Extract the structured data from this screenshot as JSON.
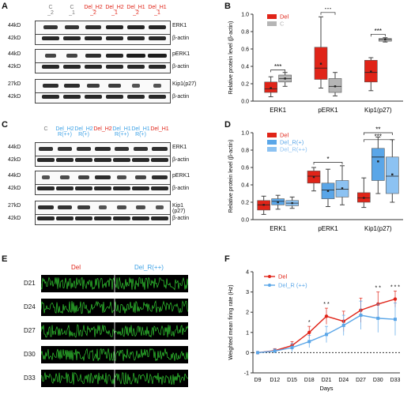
{
  "panels": {
    "A": {
      "letter": "A",
      "lanes": [
        {
          "t1": "C",
          "t2": "_2",
          "color": "gray"
        },
        {
          "t1": "C",
          "t2": "_1",
          "color": "gray"
        },
        {
          "t1": "Del_H2",
          "t2": "_2",
          "color": "red"
        },
        {
          "t1": "Del_H2",
          "t2": "_1",
          "color": "red"
        },
        {
          "t1": "Del_H1",
          "t2": "_2",
          "color": "red"
        },
        {
          "t1": "Del_H1",
          "t2": "_1",
          "color": "red"
        }
      ],
      "blots": [
        {
          "mw_top": "44kD",
          "mw_bottom": "42kD",
          "target": "ERK1",
          "ctrl": "β-actin"
        },
        {
          "mw_top": "44kD",
          "mw_bottom": "42kD",
          "target": "pERK1",
          "ctrl": "β-actin"
        },
        {
          "mw_top": "27kD",
          "mw_bottom": "42kD",
          "target": "Kip1(p27)",
          "ctrl": "β-actin"
        }
      ]
    },
    "C": {
      "letter": "C",
      "lanes": [
        {
          "t1": "C",
          "t2": "",
          "color": "gray"
        },
        {
          "t1": "Del_H2",
          "t2": "R(++)",
          "color": "blue"
        },
        {
          "t1": "Del_H2",
          "t2": "R(+)",
          "color": "blue"
        },
        {
          "t1": "Del_H2",
          "t2": "",
          "color": "red"
        },
        {
          "t1": "Del_H1",
          "t2": "R(++)",
          "color": "blue"
        },
        {
          "t1": "Del_H1",
          "t2": "R(+)",
          "color": "blue"
        },
        {
          "t1": "Del_H1",
          "t2": "",
          "color": "red"
        }
      ],
      "blots": [
        {
          "mw_top": "44kD",
          "mw_bottom": "42kD",
          "target": "ERK1",
          "ctrl": "β-actin"
        },
        {
          "mw_top": "44kD",
          "mw_bottom": "42kD",
          "target": "pERK1",
          "ctrl": "β-actin"
        },
        {
          "mw_top": "27kD",
          "mw_bottom": "42kD",
          "target": "Kip1\n(p27)",
          "ctrl": "β-actin"
        }
      ]
    },
    "E": {
      "letter": "E",
      "group_left": "Del",
      "group_right": "Del_R(++)",
      "rows": [
        "D21",
        "D24",
        "D27",
        "D30",
        "D33"
      ]
    },
    "B_letter": "B",
    "D_letter": "D",
    "F_letter": "F"
  },
  "chart_data": [
    {
      "panel": "B",
      "type": "box",
      "ylabel": "Relative protein level (β-actin)",
      "ylim": [
        0,
        1.0
      ],
      "yticks": [
        0.0,
        0.2,
        0.4,
        0.6,
        0.8,
        1.0
      ],
      "categories": [
        "ERK1",
        "pERK1",
        "Kip1(p27)"
      ],
      "legend": [
        {
          "name": "Del",
          "color": "#e02418"
        },
        {
          "name": "C",
          "color": "#b5b5b5"
        }
      ],
      "series": [
        {
          "name": "Del",
          "color": "#e02418",
          "boxes": [
            {
              "min": 0.05,
              "q1": 0.1,
              "median": 0.14,
              "q3": 0.22,
              "max": 0.28,
              "mean": 0.15
            },
            {
              "min": 0.15,
              "q1": 0.25,
              "median": 0.38,
              "q3": 0.62,
              "max": 0.97,
              "mean": 0.43
            },
            {
              "min": 0.12,
              "q1": 0.22,
              "median": 0.33,
              "q3": 0.47,
              "max": 0.5,
              "mean": 0.34
            }
          ]
        },
        {
          "name": "C",
          "color": "#b5b5b5",
          "boxes": [
            {
              "min": 0.17,
              "q1": 0.22,
              "median": 0.26,
              "q3": 0.3,
              "max": 0.33,
              "mean": 0.26
            },
            {
              "min": 0.06,
              "q1": 0.1,
              "median": 0.17,
              "q3": 0.26,
              "max": 0.33,
              "mean": 0.17
            },
            {
              "min": 0.68,
              "q1": 0.69,
              "median": 0.71,
              "q3": 0.72,
              "max": 0.73,
              "mean": 0.71
            }
          ]
        }
      ],
      "sig": [
        {
          "cat": 0,
          "label": "***",
          "y": 0.36
        },
        {
          "cat": 1,
          "label": "***",
          "y": 1.02
        },
        {
          "cat": 2,
          "label": "***",
          "y": 0.77
        }
      ]
    },
    {
      "panel": "D",
      "type": "box",
      "ylabel": "Relative protein level (β-actin)",
      "ylim": [
        0,
        1.0
      ],
      "yticks": [
        0.0,
        0.2,
        0.4,
        0.6,
        0.8,
        1.0
      ],
      "categories": [
        "ERK1",
        "pERK1",
        "Kip1(p27)"
      ],
      "legend": [
        {
          "name": "Del",
          "color": "#e02418"
        },
        {
          "name": "Del_R(+)",
          "color": "#5aa6e8"
        },
        {
          "name": "Del_R(++)",
          "color": "#8cc2f2"
        }
      ],
      "series": [
        {
          "name": "Del",
          "color": "#e02418",
          "boxes": [
            {
              "min": 0.06,
              "q1": 0.11,
              "median": 0.17,
              "q3": 0.22,
              "max": 0.27,
              "mean": 0.17
            },
            {
              "min": 0.33,
              "q1": 0.42,
              "median": 0.5,
              "q3": 0.56,
              "max": 0.6,
              "mean": 0.49
            },
            {
              "min": 0.14,
              "q1": 0.2,
              "median": 0.25,
              "q3": 0.31,
              "max": 0.48,
              "mean": 0.25
            }
          ]
        },
        {
          "name": "Del_R(+)",
          "color": "#5aa6e8",
          "boxes": [
            {
              "min": 0.12,
              "q1": 0.17,
              "median": 0.21,
              "q3": 0.24,
              "max": 0.28,
              "mean": 0.2
            },
            {
              "min": 0.15,
              "q1": 0.24,
              "median": 0.34,
              "q3": 0.42,
              "max": 0.58,
              "mean": 0.33
            },
            {
              "min": 0.3,
              "q1": 0.45,
              "median": 0.72,
              "q3": 0.82,
              "max": 0.95,
              "mean": 0.67
            }
          ]
        },
        {
          "name": "Del_R(++)",
          "color": "#8cc2f2",
          "boxes": [
            {
              "min": 0.13,
              "q1": 0.16,
              "median": 0.19,
              "q3": 0.22,
              "max": 0.26,
              "mean": 0.19
            },
            {
              "min": 0.17,
              "q1": 0.26,
              "median": 0.35,
              "q3": 0.45,
              "max": 0.62,
              "mean": 0.36
            },
            {
              "min": 0.2,
              "q1": 0.3,
              "median": 0.5,
              "q3": 0.72,
              "max": 0.92,
              "mean": 0.52
            }
          ]
        }
      ],
      "sig": [
        {
          "cat": 1,
          "label": "*",
          "y": 0.66
        },
        {
          "cat": 2,
          "label": "***",
          "y": 0.92
        },
        {
          "cat": 2,
          "label": "**",
          "y": 1.0
        }
      ]
    },
    {
      "panel": "F",
      "type": "line",
      "ylabel": "Weighted mean firing rate (Hz)",
      "xlabel": "Days",
      "ylim": [
        -1,
        4
      ],
      "yticks": [
        -1,
        0,
        1,
        2,
        3,
        4
      ],
      "categories": [
        "D9",
        "D12",
        "D15",
        "D18",
        "D21",
        "D24",
        "D27",
        "D30",
        "D33"
      ],
      "legend": [
        {
          "name": "Del",
          "color": "#e02418"
        },
        {
          "name": "Del_R (++)",
          "color": "#5aa6e8"
        }
      ],
      "series": [
        {
          "name": "Del",
          "color": "#e02418",
          "values": [
            0.0,
            0.1,
            0.35,
            1.0,
            1.8,
            1.55,
            2.1,
            2.4,
            2.65
          ],
          "err": [
            0.05,
            0.1,
            0.2,
            0.3,
            0.4,
            0.5,
            0.6,
            0.6,
            0.4
          ]
        },
        {
          "name": "Del_R (++)",
          "color": "#5aa6e8",
          "values": [
            0.0,
            0.08,
            0.25,
            0.55,
            0.9,
            1.35,
            1.85,
            1.7,
            1.65
          ],
          "err": [
            0.05,
            0.1,
            0.2,
            0.3,
            0.4,
            0.5,
            0.7,
            0.7,
            0.8
          ]
        }
      ],
      "sig": [
        {
          "idx": 3,
          "label": "*"
        },
        {
          "idx": 4,
          "label": "* *"
        },
        {
          "idx": 7,
          "label": "* *"
        },
        {
          "idx": 8,
          "label": "* * *"
        }
      ]
    }
  ]
}
